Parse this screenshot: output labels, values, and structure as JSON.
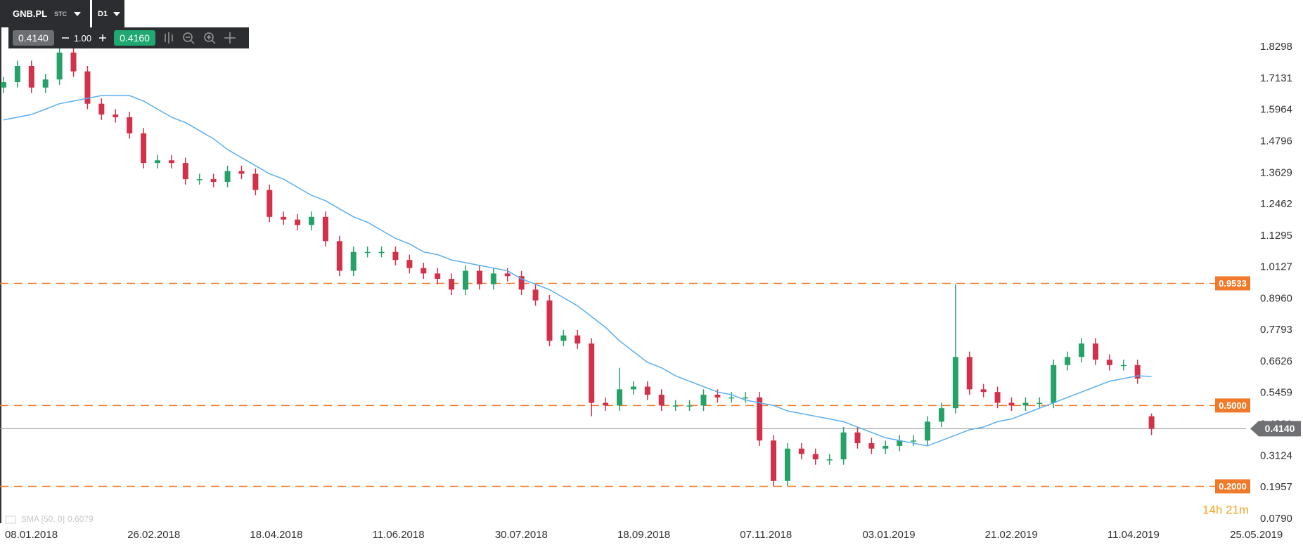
{
  "toolbar": {
    "symbol": "GNB.PL",
    "market": "STC",
    "interval": "D1",
    "bid": "0.4140",
    "volume": "1.00",
    "ask": "0.4160"
  },
  "chart_data": {
    "type": "candlestick",
    "x": [
      0,
      4,
      8,
      12,
      16,
      20,
      24,
      28,
      32,
      36,
      40,
      44,
      48,
      52,
      56,
      60,
      64,
      68,
      72,
      76,
      80,
      84,
      88,
      92,
      96,
      100,
      104,
      108,
      112,
      116,
      120,
      124,
      128,
      132,
      136,
      140,
      144,
      148,
      152,
      156,
      160,
      164,
      168,
      172,
      176,
      180,
      184,
      188,
      192,
      196,
      200,
      204,
      208,
      212,
      216,
      220,
      224,
      228,
      232,
      236,
      240,
      244,
      248,
      252,
      256,
      260,
      264,
      268,
      272,
      276,
      280,
      284,
      288,
      292,
      296,
      300,
      304,
      308,
      312,
      316,
      320,
      324,
      328
    ],
    "open": [
      1.68,
      1.7,
      1.76,
      1.68,
      1.71,
      1.81,
      1.74,
      1.62,
      1.58,
      1.57,
      1.51,
      1.4,
      1.41,
      1.4,
      1.34,
      1.34,
      1.33,
      1.37,
      1.36,
      1.3,
      1.2,
      1.19,
      1.17,
      1.2,
      1.11,
      1.0,
      1.07,
      1.07,
      1.07,
      1.04,
      1.01,
      0.99,
      0.97,
      0.93,
      1.0,
      0.95,
      0.99,
      0.98,
      0.93,
      0.89,
      0.74,
      0.76,
      0.73,
      0.51,
      0.5,
      0.56,
      0.57,
      0.54,
      0.5,
      0.5,
      0.5,
      0.54,
      0.53,
      0.53,
      0.53,
      0.37,
      0.22,
      0.34,
      0.32,
      0.3,
      0.3,
      0.4,
      0.36,
      0.34,
      0.35,
      0.37,
      0.37,
      0.44,
      0.49,
      0.68,
      0.56,
      0.55,
      0.51,
      0.5,
      0.51,
      0.51,
      0.65,
      0.68,
      0.73,
      0.67,
      0.65,
      0.65,
      0.46
    ],
    "high": [
      1.72,
      1.78,
      1.78,
      1.73,
      1.84,
      1.83,
      1.76,
      1.64,
      1.6,
      1.59,
      1.53,
      1.43,
      1.43,
      1.42,
      1.36,
      1.36,
      1.39,
      1.39,
      1.38,
      1.32,
      1.22,
      1.21,
      1.22,
      1.22,
      1.13,
      1.09,
      1.09,
      1.09,
      1.09,
      1.06,
      1.03,
      1.01,
      0.99,
      1.02,
      1.02,
      1.01,
      1.01,
      1.0,
      0.95,
      0.91,
      0.78,
      0.78,
      0.75,
      0.53,
      0.64,
      0.59,
      0.59,
      0.56,
      0.52,
      0.52,
      0.56,
      0.56,
      0.55,
      0.55,
      0.55,
      0.39,
      0.36,
      0.36,
      0.34,
      0.32,
      0.42,
      0.42,
      0.38,
      0.37,
      0.39,
      0.39,
      0.46,
      0.51,
      0.95,
      0.7,
      0.58,
      0.57,
      0.53,
      0.53,
      0.53,
      0.67,
      0.7,
      0.75,
      0.75,
      0.69,
      0.67,
      0.67,
      0.47
    ],
    "low": [
      1.66,
      1.68,
      1.66,
      1.66,
      1.69,
      1.72,
      1.6,
      1.56,
      1.55,
      1.49,
      1.38,
      1.38,
      1.38,
      1.32,
      1.32,
      1.31,
      1.31,
      1.34,
      1.28,
      1.18,
      1.17,
      1.15,
      1.15,
      1.09,
      0.98,
      0.98,
      1.05,
      1.05,
      1.02,
      0.99,
      0.97,
      0.95,
      0.91,
      0.91,
      0.93,
      0.93,
      0.96,
      0.91,
      0.87,
      0.72,
      0.72,
      0.71,
      0.46,
      0.48,
      0.48,
      0.54,
      0.52,
      0.48,
      0.48,
      0.48,
      0.48,
      0.51,
      0.51,
      0.51,
      0.35,
      0.2,
      0.2,
      0.3,
      0.28,
      0.28,
      0.28,
      0.34,
      0.32,
      0.32,
      0.33,
      0.35,
      0.35,
      0.42,
      0.47,
      0.54,
      0.53,
      0.49,
      0.48,
      0.48,
      0.49,
      0.49,
      0.63,
      0.66,
      0.65,
      0.63,
      0.63,
      0.58,
      0.39
    ],
    "close": [
      1.7,
      1.76,
      1.68,
      1.71,
      1.81,
      1.74,
      1.62,
      1.58,
      1.57,
      1.51,
      1.4,
      1.41,
      1.4,
      1.34,
      1.34,
      1.33,
      1.37,
      1.36,
      1.3,
      1.2,
      1.19,
      1.17,
      1.2,
      1.11,
      1.0,
      1.07,
      1.07,
      1.07,
      1.04,
      1.01,
      0.99,
      0.97,
      0.93,
      1.0,
      0.95,
      0.99,
      0.98,
      0.93,
      0.89,
      0.74,
      0.76,
      0.73,
      0.51,
      0.5,
      0.56,
      0.57,
      0.54,
      0.5,
      0.5,
      0.5,
      0.54,
      0.53,
      0.53,
      0.53,
      0.37,
      0.22,
      0.34,
      0.32,
      0.3,
      0.3,
      0.4,
      0.36,
      0.34,
      0.35,
      0.37,
      0.37,
      0.44,
      0.49,
      0.68,
      0.56,
      0.55,
      0.51,
      0.5,
      0.51,
      0.51,
      0.65,
      0.68,
      0.73,
      0.67,
      0.65,
      0.65,
      0.6,
      0.414
    ],
    "up_color": "#26a269",
    "down_color": "#d1314b",
    "sma": {
      "name": "SMA [50, 0]",
      "color": "#5aaff0",
      "values": [
        1.56,
        1.57,
        1.58,
        1.6,
        1.62,
        1.63,
        1.64,
        1.65,
        1.65,
        1.65,
        1.63,
        1.6,
        1.57,
        1.55,
        1.52,
        1.49,
        1.45,
        1.42,
        1.39,
        1.36,
        1.34,
        1.31,
        1.28,
        1.26,
        1.23,
        1.2,
        1.18,
        1.15,
        1.12,
        1.1,
        1.07,
        1.06,
        1.04,
        1.03,
        1.02,
        1.01,
        1.0,
        0.97,
        0.95,
        0.93,
        0.9,
        0.87,
        0.83,
        0.79,
        0.74,
        0.7,
        0.66,
        0.64,
        0.61,
        0.59,
        0.57,
        0.55,
        0.54,
        0.52,
        0.51,
        0.5,
        0.48,
        0.47,
        0.46,
        0.45,
        0.44,
        0.42,
        0.4,
        0.38,
        0.37,
        0.36,
        0.35,
        0.37,
        0.39,
        0.41,
        0.42,
        0.44,
        0.45,
        0.47,
        0.49,
        0.51,
        0.53,
        0.55,
        0.57,
        0.59,
        0.6,
        0.61,
        0.6079
      ]
    },
    "levels": [
      {
        "value": 0.9533
      },
      {
        "value": 0.5,
        "label": "0.5000"
      },
      {
        "value": 0.2,
        "label": "0.2000"
      }
    ],
    "level_color": "#f07a2a",
    "current_price": {
      "value": 0.414,
      "label": "0.4140"
    },
    "countdown": "14h 21m",
    "xlim": [
      -1,
      355
    ],
    "xticks": [
      {
        "value": 0,
        "label": "08.01.2018"
      },
      {
        "value": 35,
        "label": "26.02.2018"
      },
      {
        "value": 70,
        "label": "18.04.2018"
      },
      {
        "value": 105,
        "label": "11.06.2018"
      },
      {
        "value": 140,
        "label": "30.07.2018"
      },
      {
        "value": 175,
        "label": "18.09.2018"
      },
      {
        "value": 210,
        "label": "07.11.2018"
      },
      {
        "value": 245,
        "label": "03.01.2019"
      },
      {
        "value": 280,
        "label": "21.02.2019"
      },
      {
        "value": 315,
        "label": "11.04.2019"
      },
      {
        "value": 350,
        "label": "25.05.2019"
      }
    ],
    "ylim": [
      0.063,
      2.005
    ],
    "yticks": [
      1.8298,
      1.7131,
      1.5964,
      1.4796,
      1.3629,
      1.2462,
      1.1295,
      1.0127,
      {
        "value": 0.896,
        "label": "0.8960"
      },
      0.7793,
      0.6626,
      0.5459,
      0.4291,
      0.3124,
      0.1957,
      {
        "value": 0.079,
        "label": "0.0790"
      }
    ]
  }
}
